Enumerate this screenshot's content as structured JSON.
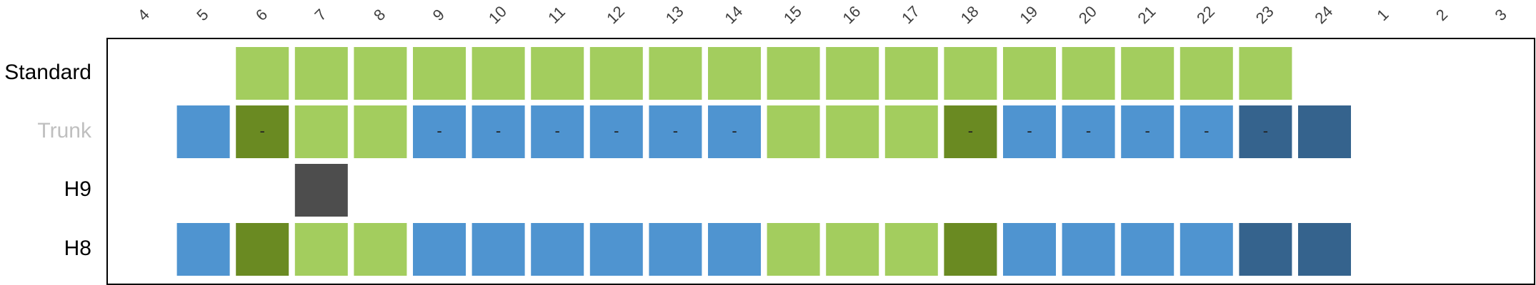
{
  "chart_data": {
    "type": "heatmap",
    "x_ticks": [
      "4",
      "5",
      "6",
      "7",
      "8",
      "9",
      "10",
      "11",
      "12",
      "13",
      "14",
      "15",
      "16",
      "17",
      "18",
      "19",
      "20",
      "21",
      "22",
      "23",
      "24",
      "1",
      "2",
      "3"
    ],
    "rows": [
      {
        "label": "Standard",
        "label_color": "#000000",
        "cells": [
          {
            "x": "6",
            "category": "light-green",
            "mark": ""
          },
          {
            "x": "7",
            "category": "light-green",
            "mark": ""
          },
          {
            "x": "8",
            "category": "light-green",
            "mark": ""
          },
          {
            "x": "9",
            "category": "light-green",
            "mark": ""
          },
          {
            "x": "10",
            "category": "light-green",
            "mark": ""
          },
          {
            "x": "11",
            "category": "light-green",
            "mark": ""
          },
          {
            "x": "12",
            "category": "light-green",
            "mark": ""
          },
          {
            "x": "13",
            "category": "light-green",
            "mark": ""
          },
          {
            "x": "14",
            "category": "light-green",
            "mark": ""
          },
          {
            "x": "15",
            "category": "light-green",
            "mark": ""
          },
          {
            "x": "16",
            "category": "light-green",
            "mark": ""
          },
          {
            "x": "17",
            "category": "light-green",
            "mark": ""
          },
          {
            "x": "18",
            "category": "light-green",
            "mark": ""
          },
          {
            "x": "19",
            "category": "light-green",
            "mark": ""
          },
          {
            "x": "20",
            "category": "light-green",
            "mark": ""
          },
          {
            "x": "21",
            "category": "light-green",
            "mark": ""
          },
          {
            "x": "22",
            "category": "light-green",
            "mark": ""
          },
          {
            "x": "23",
            "category": "light-green",
            "mark": ""
          }
        ]
      },
      {
        "label": "Trunk",
        "label_color": "#bfbfbf",
        "cells": [
          {
            "x": "5",
            "category": "blue",
            "mark": ""
          },
          {
            "x": "6",
            "category": "dark-green",
            "mark": "-"
          },
          {
            "x": "7",
            "category": "light-green",
            "mark": ""
          },
          {
            "x": "8",
            "category": "light-green",
            "mark": ""
          },
          {
            "x": "9",
            "category": "blue",
            "mark": "-"
          },
          {
            "x": "10",
            "category": "blue",
            "mark": "-"
          },
          {
            "x": "11",
            "category": "blue",
            "mark": "-"
          },
          {
            "x": "12",
            "category": "blue",
            "mark": "-"
          },
          {
            "x": "13",
            "category": "blue",
            "mark": "-"
          },
          {
            "x": "14",
            "category": "blue",
            "mark": "-"
          },
          {
            "x": "15",
            "category": "light-green",
            "mark": ""
          },
          {
            "x": "16",
            "category": "light-green",
            "mark": ""
          },
          {
            "x": "17",
            "category": "light-green",
            "mark": ""
          },
          {
            "x": "18",
            "category": "dark-green",
            "mark": "-"
          },
          {
            "x": "19",
            "category": "blue",
            "mark": "-"
          },
          {
            "x": "20",
            "category": "blue",
            "mark": "-"
          },
          {
            "x": "21",
            "category": "blue",
            "mark": "-"
          },
          {
            "x": "22",
            "category": "blue",
            "mark": "-"
          },
          {
            "x": "23",
            "category": "dark-blue",
            "mark": "-"
          },
          {
            "x": "24",
            "category": "dark-blue",
            "mark": ""
          }
        ]
      },
      {
        "label": "H9",
        "label_color": "#000000",
        "cells": [
          {
            "x": "7",
            "category": "dark-gray",
            "mark": ""
          }
        ]
      },
      {
        "label": "H8",
        "label_color": "#000000",
        "cells": [
          {
            "x": "5",
            "category": "blue",
            "mark": ""
          },
          {
            "x": "6",
            "category": "dark-green",
            "mark": ""
          },
          {
            "x": "7",
            "category": "light-green",
            "mark": ""
          },
          {
            "x": "8",
            "category": "light-green",
            "mark": ""
          },
          {
            "x": "9",
            "category": "blue",
            "mark": ""
          },
          {
            "x": "10",
            "category": "blue",
            "mark": ""
          },
          {
            "x": "11",
            "category": "blue",
            "mark": ""
          },
          {
            "x": "12",
            "category": "blue",
            "mark": ""
          },
          {
            "x": "13",
            "category": "blue",
            "mark": ""
          },
          {
            "x": "14",
            "category": "blue",
            "mark": ""
          },
          {
            "x": "15",
            "category": "light-green",
            "mark": ""
          },
          {
            "x": "16",
            "category": "light-green",
            "mark": ""
          },
          {
            "x": "17",
            "category": "light-green",
            "mark": ""
          },
          {
            "x": "18",
            "category": "dark-green",
            "mark": ""
          },
          {
            "x": "19",
            "category": "blue",
            "mark": ""
          },
          {
            "x": "20",
            "category": "blue",
            "mark": ""
          },
          {
            "x": "21",
            "category": "blue",
            "mark": ""
          },
          {
            "x": "22",
            "category": "blue",
            "mark": ""
          },
          {
            "x": "23",
            "category": "dark-blue",
            "mark": ""
          },
          {
            "x": "24",
            "category": "dark-blue",
            "mark": ""
          }
        ]
      }
    ],
    "category_colors": {
      "light-green": "#a3cd5e",
      "dark-green": "#6a8a22",
      "blue": "#4f94d0",
      "dark-blue": "#35638d",
      "dark-gray": "#4d4d4d"
    },
    "frame_color": "#000000",
    "tick_label_color": "#404040",
    "grid": false,
    "legend": "none"
  }
}
